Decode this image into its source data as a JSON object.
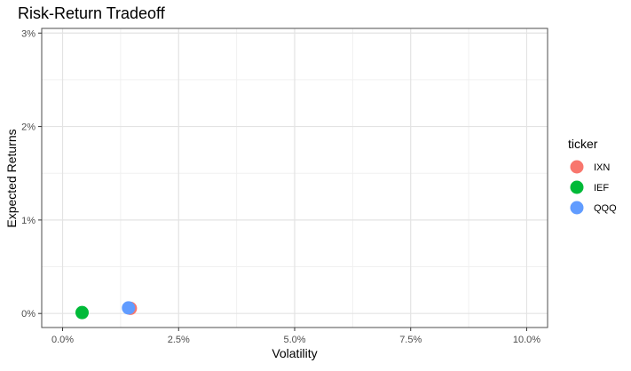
{
  "chart_data": {
    "type": "scatter",
    "title": "Risk-Return Tradeoff",
    "xlabel": "Volatility",
    "ylabel": "Expected Returns",
    "xlim": [
      -0.0045,
      0.1045
    ],
    "ylim": [
      -0.0015,
      0.0305
    ],
    "x_ticks": [
      0.0,
      0.025,
      0.05,
      0.075,
      0.1
    ],
    "x_tick_labels": [
      "0.0%",
      "2.5%",
      "5.0%",
      "7.5%",
      "10.0%"
    ],
    "y_ticks": [
      0.0,
      0.01,
      0.02,
      0.03
    ],
    "y_tick_labels": [
      "0%",
      "1%",
      "2%",
      "3%"
    ],
    "grid": true,
    "legend": {
      "title": "ticker",
      "placement": "right"
    },
    "series": [
      {
        "name": "IXN",
        "color": "#F8766D",
        "x": [
          0.0146
        ],
        "y": [
          0.00055
        ]
      },
      {
        "name": "IEF",
        "color": "#00BA38",
        "x": [
          0.0042
        ],
        "y": [
          0.0001
        ]
      },
      {
        "name": "QQQ",
        "color": "#619CFF",
        "x": [
          0.0142
        ],
        "y": [
          0.0006
        ]
      }
    ]
  }
}
